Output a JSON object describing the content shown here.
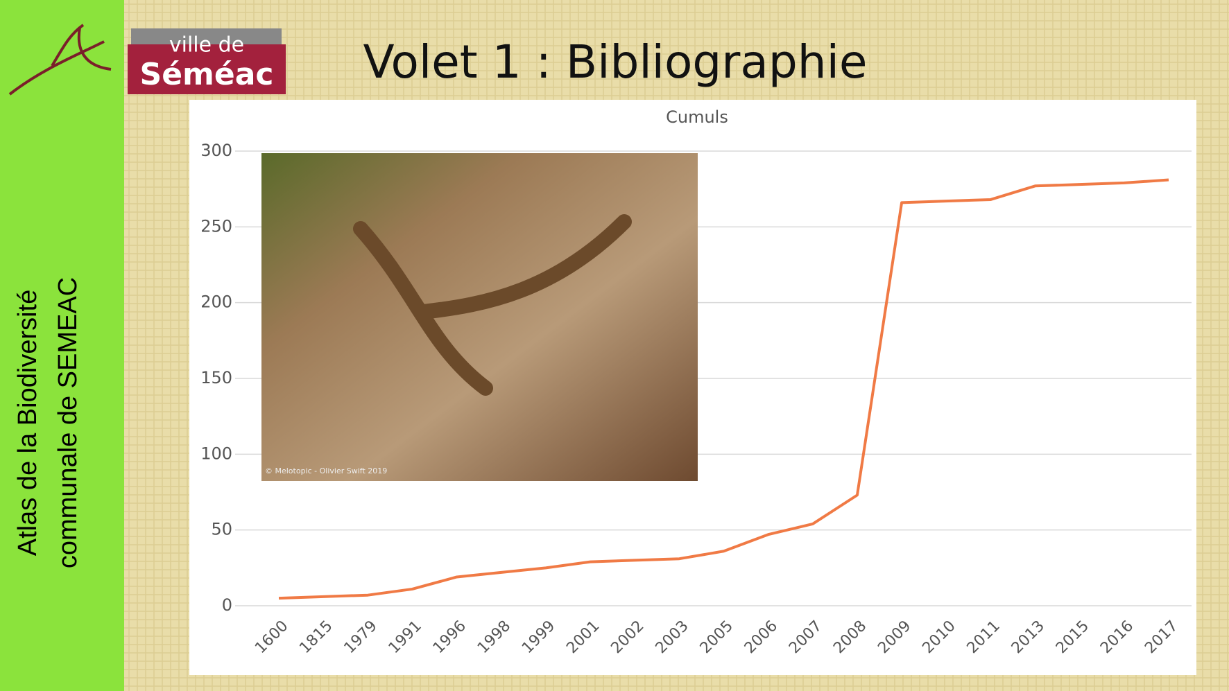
{
  "sidebar": {
    "lines": [
      "Atlas de la Biodiversité",
      "communale de SEMEAC"
    ]
  },
  "logo": {
    "top": "ville de",
    "bottom": "Séméac"
  },
  "header": {
    "title": "Volet 1 : Bibliographie"
  },
  "photo": {
    "credit": "© Melotopic - Olivier Swift 2019"
  },
  "chart_data": {
    "type": "line",
    "title": "Cumuls",
    "categories": [
      "1600",
      "1815",
      "1979",
      "1991",
      "1996",
      "1998",
      "1999",
      "2001",
      "2002",
      "2003",
      "2005",
      "2006",
      "2007",
      "2008",
      "2009",
      "2010",
      "2011",
      "2013",
      "2015",
      "2016",
      "2017"
    ],
    "values": [
      5,
      6,
      7,
      11,
      19,
      22,
      25,
      29,
      30,
      31,
      36,
      47,
      54,
      73,
      266,
      267,
      268,
      277,
      278,
      279,
      281
    ],
    "color": "#f07a45",
    "ylim": [
      0,
      300
    ],
    "yticks": [
      0,
      50,
      100,
      150,
      200,
      250,
      300
    ],
    "grid": true
  }
}
